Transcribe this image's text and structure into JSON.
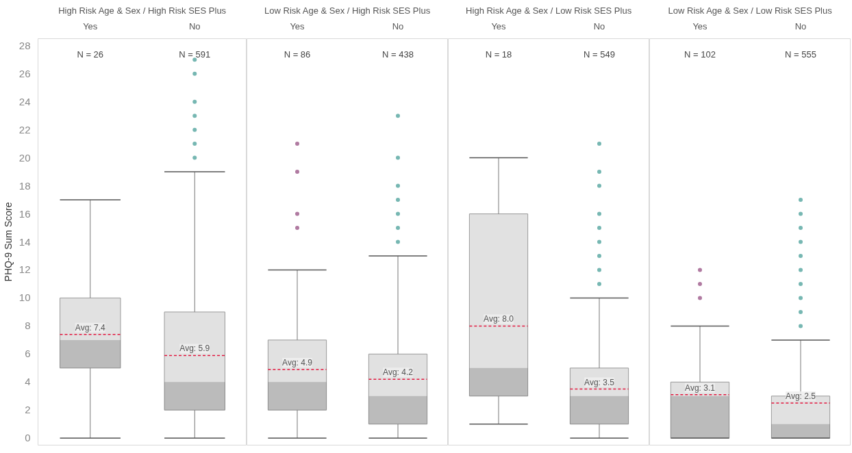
{
  "chart_data": [
    {
      "type": "box",
      "title": "High Risk Age & Sex / High Risk SES Plus",
      "ylabel": "PHQ-9 Sum Score",
      "categories": [
        "Yes",
        "No"
      ],
      "colors": [
        "#e1e1e1",
        "#e1e1e1"
      ],
      "ylim": [
        -0.5,
        28.5
      ],
      "yticks": [
        0,
        2,
        4,
        6,
        8,
        10,
        12,
        14,
        16,
        18,
        20,
        22,
        24,
        26,
        28
      ],
      "boxes": [
        {
          "low": 0,
          "q1": 5,
          "median": 7,
          "q3": 10,
          "high": 17,
          "mean": 7.4
        },
        {
          "low": 0,
          "q1": 2,
          "median": 4,
          "q3": 9,
          "high": 19,
          "mean": 5.9,
          "outliers": [
            20,
            21,
            22,
            23,
            24,
            26,
            27
          ]
        }
      ],
      "annotations": [
        "N = 26",
        "N = 591",
        {
          "text": "Avg: 7.4",
          "x": "Yes",
          "y": 7.4
        },
        {
          "text": "Avg: 5.9",
          "x": "No",
          "y": 5.9
        }
      ]
    },
    {
      "type": "box",
      "title": "Low Risk Age & Sex / High Risk SES Plus",
      "categories": [
        "Yes",
        "No"
      ],
      "colors": [
        "#e1e1e1",
        "#e1e1e1"
      ],
      "ylim": [
        -0.5,
        28.5
      ],
      "tick_labels": "x",
      "boxes": [
        {
          "low": 0,
          "q1": 2,
          "median": 4,
          "q3": 7,
          "high": 12,
          "mean": 4.9,
          "outliers": [
            15,
            16,
            19,
            21
          ]
        },
        {
          "low": 0,
          "q1": 1,
          "median": 3,
          "q3": 6,
          "high": 13,
          "mean": 4.2,
          "outliers": [
            14,
            15,
            16,
            17,
            18,
            20,
            23
          ]
        }
      ],
      "annotations": [
        "N = 86",
        "N = 438",
        {
          "text": "Avg: 4.9",
          "x": "Yes",
          "y": 4.9
        },
        {
          "text": "Avg: 4.2",
          "x": "No",
          "y": 4.2
        }
      ]
    },
    {
      "type": "box",
      "title": "High Risk Age & Sex / Low Risk SES Plus",
      "categories": [
        "Yes",
        "No"
      ],
      "colors": [
        "#e1e1e1",
        "#e1e1e1"
      ],
      "ylim": [
        -0.5,
        28.5
      ],
      "tick_labels": "x",
      "boxes": [
        {
          "low": 1,
          "q1": 3,
          "median": 5,
          "q3": 16,
          "high": 20,
          "mean": 8.0
        },
        {
          "low": 0,
          "q1": 1,
          "median": 3,
          "q3": 5,
          "high": 10,
          "mean": 3.5,
          "outliers": [
            11,
            12,
            13,
            14,
            15,
            16,
            18,
            19,
            21
          ]
        }
      ],
      "annotations": [
        "N = 18",
        "N = 549",
        {
          "text": "Avg: 8.0",
          "x": "Yes",
          "y": 8.0
        },
        {
          "text": "Avg: 3.5",
          "x": "No",
          "y": 3.5
        }
      ]
    },
    {
      "type": "box",
      "title": "Low Risk Age & Sex / Low Risk SES Plus",
      "categories": [
        "Yes",
        "No"
      ],
      "colors": [
        "#e1e1e1",
        "#e1e1e1"
      ],
      "ylim": [
        -0.5,
        28.5
      ],
      "tick_labels": "x",
      "boxes": [
        {
          "low": 0,
          "q1": 0,
          "median": 3,
          "q3": 4,
          "high": 8,
          "mean": 3.1,
          "outliers": [
            10,
            11,
            12
          ]
        },
        {
          "low": 0,
          "q1": 0,
          "median": 1,
          "q3": 3,
          "high": 7,
          "mean": 2.5,
          "outliers": [
            8,
            9,
            10,
            11,
            12,
            13,
            14,
            15,
            16,
            17
          ]
        }
      ],
      "annotations": [
        "N = 102",
        "N = 555",
        {
          "text": "Avg: 3.1",
          "x": "Yes",
          "y": 3.1
        },
        {
          "text": "Avg: 2.5",
          "x": "No",
          "y": 2.5
        }
      ]
    }
  ]
}
